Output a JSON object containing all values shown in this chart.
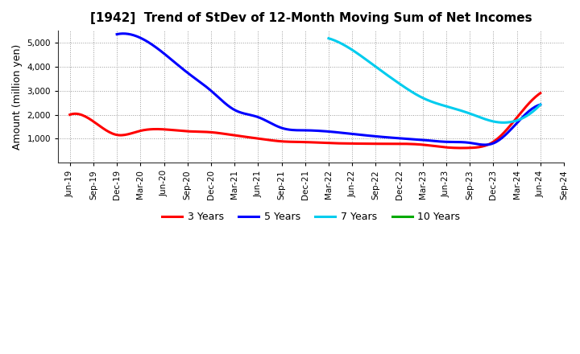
{
  "title": "[1942]  Trend of StDev of 12-Month Moving Sum of Net Incomes",
  "ylabel": "Amount (million yen)",
  "background_color": "#ffffff",
  "grid_color": "#999999",
  "ylim": [
    0,
    5500
  ],
  "yticks": [
    1000,
    2000,
    3000,
    4000,
    5000
  ],
  "series": {
    "3 Years": {
      "color": "#ff0000",
      "x": [
        0,
        1,
        2,
        3,
        4,
        5,
        6,
        7,
        8,
        9,
        10,
        11,
        12,
        13,
        14,
        15,
        16,
        17,
        18,
        19,
        20
      ],
      "y": [
        2000,
        1720,
        1160,
        1330,
        1390,
        1310,
        1270,
        1140,
        1010,
        890,
        860,
        820,
        800,
        790,
        790,
        750,
        640,
        620,
        870,
        1880,
        2900
      ]
    },
    "5 Years": {
      "color": "#0000ff",
      "x": [
        2,
        3,
        4,
        5,
        6,
        7,
        8,
        9,
        10,
        11,
        12,
        13,
        14,
        15,
        16,
        17,
        18,
        19,
        20
      ],
      "y": [
        5350,
        5200,
        4550,
        3750,
        3000,
        2200,
        1900,
        1450,
        1350,
        1300,
        1200,
        1100,
        1020,
        950,
        870,
        830,
        810,
        1650,
        2420
      ]
    },
    "7 Years": {
      "color": "#00ccee",
      "x": [
        11,
        12,
        13,
        14,
        15,
        16,
        17,
        18,
        19,
        20
      ],
      "y": [
        5180,
        4700,
        4000,
        3300,
        2700,
        2350,
        2050,
        1720,
        1760,
        2420
      ]
    },
    "10 Years": {
      "color": "#00aa00",
      "x": [],
      "y": []
    }
  },
  "legend_order": [
    "3 Years",
    "5 Years",
    "7 Years",
    "10 Years"
  ],
  "x_tick_labels": [
    "Jun-19",
    "Sep-19",
    "Dec-19",
    "Mar-20",
    "Jun-20",
    "Sep-20",
    "Dec-20",
    "Mar-21",
    "Jun-21",
    "Sep-21",
    "Dec-21",
    "Mar-22",
    "Jun-22",
    "Sep-22",
    "Dec-22",
    "Mar-23",
    "Jun-23",
    "Sep-23",
    "Dec-23",
    "Mar-24",
    "Jun-24",
    "Sep-24"
  ],
  "title_fontsize": 11,
  "tick_fontsize": 7.5,
  "ylabel_fontsize": 9,
  "legend_fontsize": 9,
  "linewidth": 2.2
}
